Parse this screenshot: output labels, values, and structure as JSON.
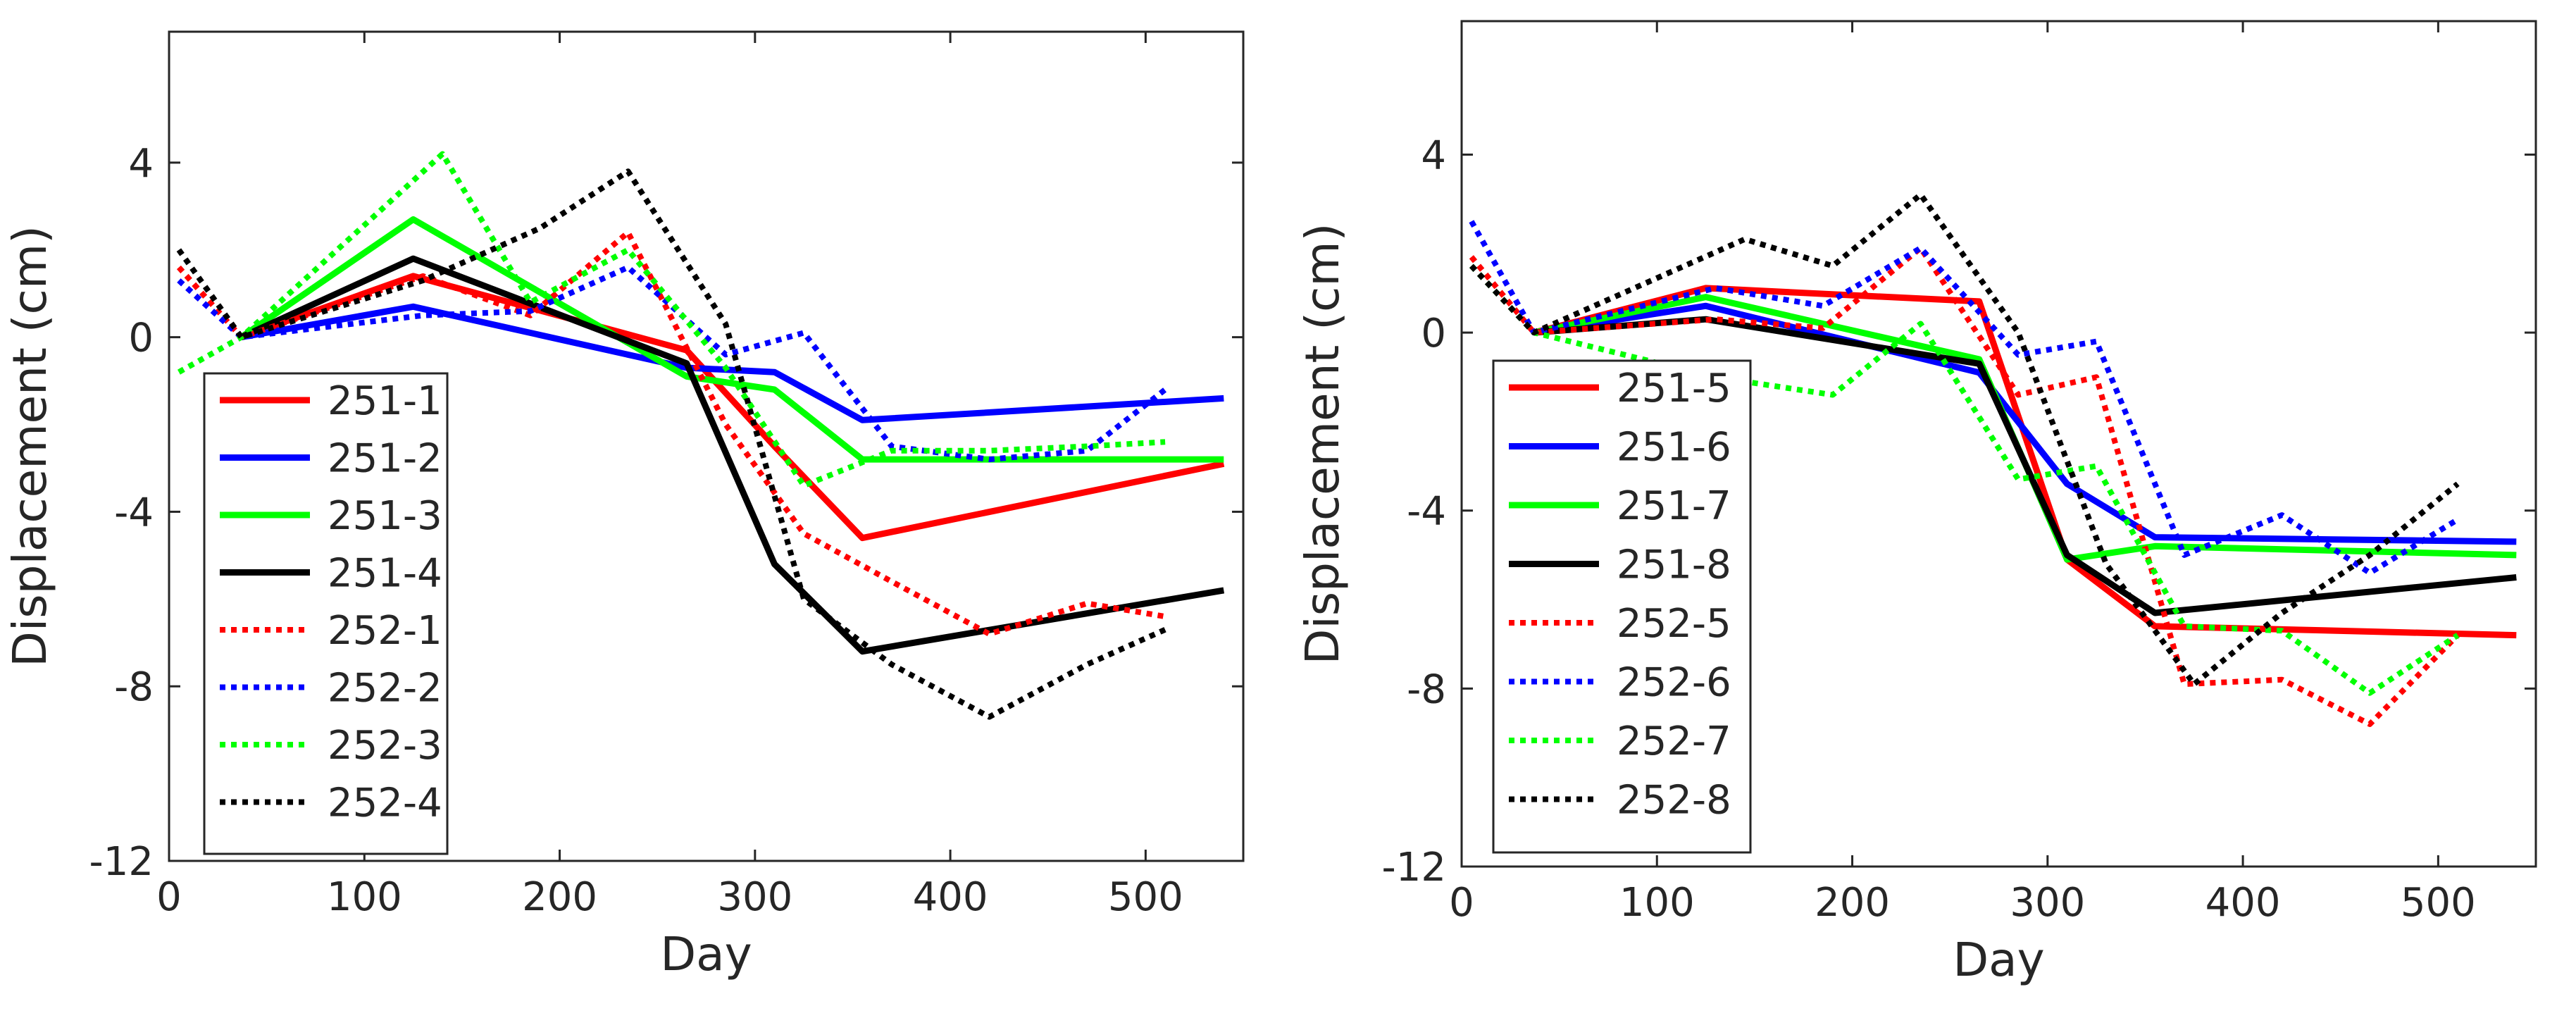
{
  "chart_data": [
    {
      "type": "line",
      "title": "",
      "xlabel": "Day",
      "ylabel": "Displacement (cm)",
      "xlim": [
        0,
        550
      ],
      "ylim": [
        -12,
        7
      ],
      "xticks": [
        0,
        100,
        200,
        300,
        400,
        500
      ],
      "yticks": [
        -12,
        -8,
        -4,
        0,
        4
      ],
      "xtick_labels": [
        "0",
        "100",
        "200",
        "300",
        "400",
        "500"
      ],
      "ytick_labels": [
        "-12",
        "-8",
        "-4",
        "0",
        "4"
      ],
      "grid": false,
      "legend_location": "lower-left",
      "series": [
        {
          "name": "251-1",
          "color": "#ff0000",
          "style": "solid",
          "x": [
            37,
            125,
            265,
            310,
            355,
            540
          ],
          "y": [
            0,
            1.4,
            -0.3,
            -2.5,
            -4.6,
            -2.9
          ]
        },
        {
          "name": "251-2",
          "color": "#0000ff",
          "style": "solid",
          "x": [
            37,
            125,
            265,
            310,
            355,
            540
          ],
          "y": [
            0,
            0.7,
            -0.7,
            -0.8,
            -1.9,
            -1.4
          ]
        },
        {
          "name": "251-3",
          "color": "#00ff00",
          "style": "solid",
          "x": [
            37,
            125,
            265,
            310,
            355,
            540
          ],
          "y": [
            0,
            2.7,
            -0.9,
            -1.2,
            -2.8,
            -2.8
          ]
        },
        {
          "name": "251-4",
          "color": "#000000",
          "style": "solid",
          "x": [
            37,
            125,
            265,
            310,
            355,
            540
          ],
          "y": [
            0,
            1.8,
            -0.6,
            -5.2,
            -7.2,
            -5.8
          ]
        },
        {
          "name": "252-1",
          "color": "#ff0000",
          "style": "dotted",
          "x": [
            5,
            37,
            130,
            185,
            235,
            285,
            325,
            370,
            420,
            470,
            510
          ],
          "y": [
            1.6,
            0,
            1.4,
            0.5,
            2.4,
            -2.0,
            -4.5,
            -5.6,
            -6.8,
            -6.1,
            -6.4
          ]
        },
        {
          "name": "252-2",
          "color": "#0000ff",
          "style": "dotted",
          "x": [
            5,
            37,
            130,
            185,
            235,
            285,
            325,
            370,
            420,
            470,
            510
          ],
          "y": [
            1.3,
            0,
            0.5,
            0.6,
            1.6,
            -0.4,
            0.1,
            -2.5,
            -2.8,
            -2.6,
            -1.2
          ]
        },
        {
          "name": "252-3",
          "color": "#00ff00",
          "style": "dotted",
          "x": [
            5,
            37,
            140,
            185,
            235,
            285,
            325,
            370,
            420,
            470,
            510
          ],
          "y": [
            -0.8,
            0,
            4.2,
            0.8,
            2.0,
            -0.7,
            -3.4,
            -2.6,
            -2.6,
            -2.5,
            -2.4
          ]
        },
        {
          "name": "252-4",
          "color": "#000000",
          "style": "dotted",
          "x": [
            5,
            37,
            130,
            190,
            235,
            285,
            325,
            370,
            420,
            470,
            510
          ],
          "y": [
            2.0,
            0,
            1.3,
            2.5,
            3.8,
            0.3,
            -6.0,
            -7.5,
            -8.7,
            -7.5,
            -6.7
          ]
        }
      ]
    },
    {
      "type": "line",
      "title": "",
      "xlabel": "Day",
      "ylabel": "Displacement (cm)",
      "xlim": [
        0,
        550
      ],
      "ylim": [
        -12,
        7
      ],
      "xticks": [
        0,
        100,
        200,
        300,
        400,
        500
      ],
      "yticks": [
        -12,
        -8,
        -4,
        0,
        4
      ],
      "xtick_labels": [
        "0",
        "100",
        "200",
        "300",
        "400",
        "500"
      ],
      "ytick_labels": [
        "-12",
        "-8",
        "-4",
        "0",
        "4"
      ],
      "grid": false,
      "legend_location": "lower-left",
      "series": [
        {
          "name": "251-5",
          "color": "#ff0000",
          "style": "solid",
          "x": [
            37,
            125,
            265,
            310,
            355,
            540
          ],
          "y": [
            0,
            1.0,
            0.7,
            -5.1,
            -6.6,
            -6.8
          ]
        },
        {
          "name": "251-6",
          "color": "#0000ff",
          "style": "solid",
          "x": [
            37,
            125,
            265,
            310,
            355,
            540
          ],
          "y": [
            0,
            0.6,
            -0.9,
            -3.4,
            -4.6,
            -4.7
          ]
        },
        {
          "name": "251-7",
          "color": "#00ff00",
          "style": "solid",
          "x": [
            37,
            125,
            265,
            310,
            355,
            540
          ],
          "y": [
            0,
            0.8,
            -0.6,
            -5.1,
            -4.8,
            -5.0
          ]
        },
        {
          "name": "251-8",
          "color": "#000000",
          "style": "solid",
          "x": [
            37,
            125,
            265,
            310,
            355,
            540
          ],
          "y": [
            0,
            0.3,
            -0.7,
            -5.0,
            -6.3,
            -5.5
          ]
        },
        {
          "name": "252-5",
          "color": "#ff0000",
          "style": "dotted",
          "x": [
            5,
            37,
            130,
            185,
            235,
            285,
            325,
            370,
            420,
            465,
            510
          ],
          "y": [
            1.7,
            0,
            0.3,
            0.1,
            1.9,
            -1.4,
            -1.0,
            -7.9,
            -7.8,
            -8.8,
            -6.8
          ]
        },
        {
          "name": "252-6",
          "color": "#0000ff",
          "style": "dotted",
          "x": [
            5,
            37,
            130,
            185,
            235,
            285,
            325,
            370,
            420,
            465,
            510
          ],
          "y": [
            2.5,
            0,
            1.0,
            0.6,
            1.9,
            -0.5,
            -0.2,
            -5.0,
            -4.1,
            -5.4,
            -4.2
          ]
        },
        {
          "name": "252-7",
          "color": "#00ff00",
          "style": "dotted",
          "x": [
            5,
            37,
            130,
            190,
            235,
            285,
            325,
            370,
            420,
            465,
            510
          ],
          "y": [
            1.5,
            0,
            -1.0,
            -1.4,
            0.2,
            -3.3,
            -3.0,
            -6.6,
            -6.7,
            -8.1,
            -6.8
          ]
        },
        {
          "name": "252-8",
          "color": "#000000",
          "style": "dotted",
          "x": [
            5,
            37,
            145,
            190,
            235,
            285,
            330,
            375,
            420,
            465,
            510
          ],
          "y": [
            1.5,
            0,
            2.1,
            1.5,
            3.1,
            0.0,
            -5.2,
            -7.9,
            -6.3,
            -5.0,
            -3.4
          ]
        }
      ]
    }
  ]
}
